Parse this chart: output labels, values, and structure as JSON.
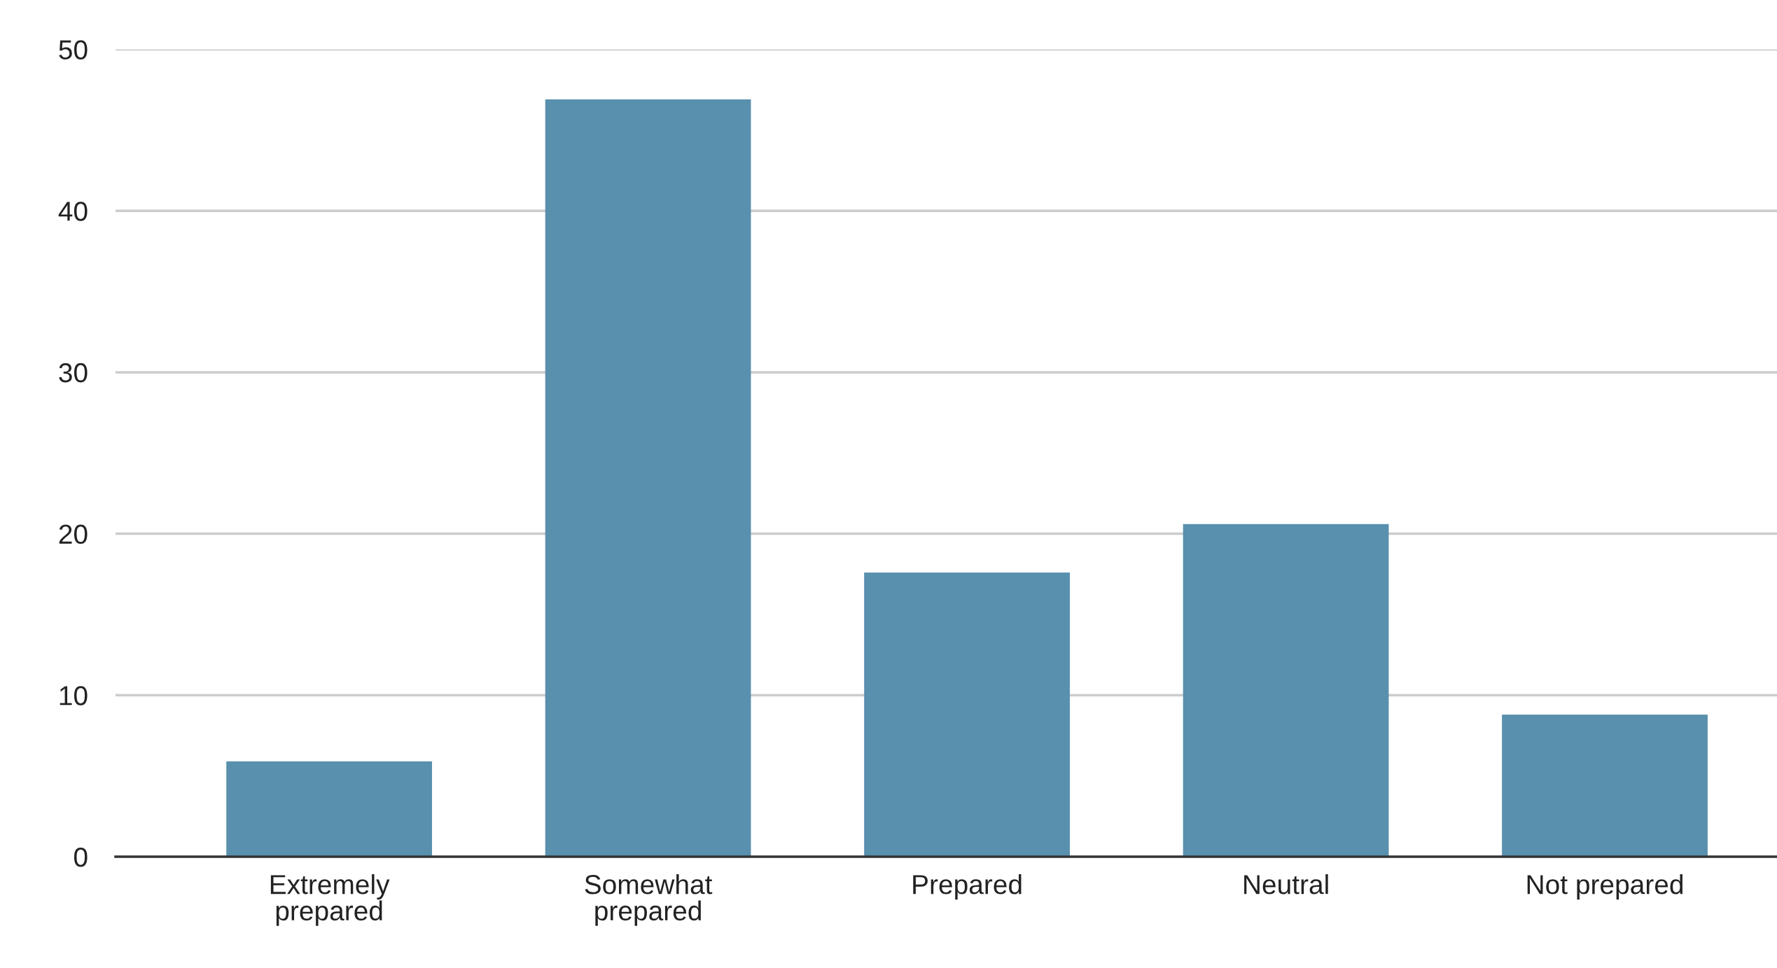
{
  "chart_data": {
    "type": "bar",
    "categories": [
      "Extremely\nprepared",
      "Somewhat\nprepared",
      "Prepared",
      "Neutral",
      "Not prepared"
    ],
    "values": [
      5.9,
      46.9,
      17.6,
      20.6,
      8.8
    ],
    "color": "#5990ae",
    "ylim": [
      0,
      50
    ],
    "yticks": [
      0,
      10,
      20,
      30,
      40,
      50
    ],
    "grid": "y"
  }
}
